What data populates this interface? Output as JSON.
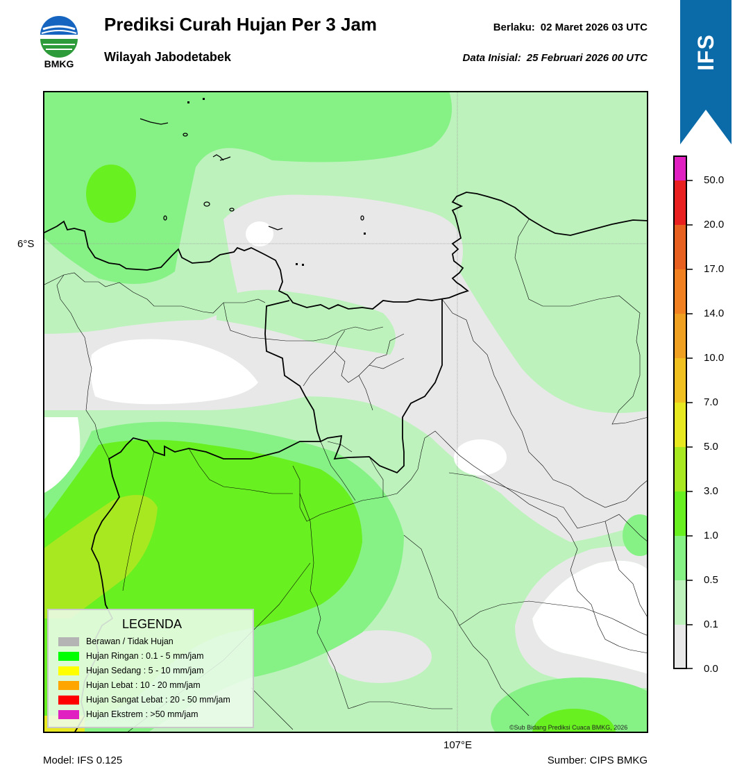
{
  "header": {
    "logo_text": "BMKG",
    "title": "Prediksi Curah Hujan Per 3 Jam",
    "subtitle": "Wilayah Jabodetabek",
    "valid_label": "Berlaku:",
    "valid_value": "02 Maret 2026 03 UTC",
    "init_label": "Data Inisial:",
    "init_value": "25 Februari 2026 00 UTC",
    "ribbon_text": "IFS"
  },
  "map": {
    "lat_label": "6°S",
    "lon_label": "107°E",
    "credit": "©Sub Bidang Prediksi Cuaca BMKG, 2026"
  },
  "footer": {
    "model": "Model: IFS 0.125",
    "source": "Sumber: CIPS BMKG"
  },
  "colorbar": {
    "ticks": [
      "0.0",
      "0.1",
      "0.5",
      "1.0",
      "3.0",
      "5.0",
      "7.0",
      "10.0",
      "14.0",
      "17.0",
      "20.0",
      "50.0"
    ],
    "colors": [
      "#e8e8e8",
      "#bdf2bd",
      "#86f286",
      "#68f020",
      "#a8e820",
      "#e8e820",
      "#f0c020",
      "#f0a020",
      "#f08020",
      "#e86020",
      "#e82020",
      "#e020c0"
    ]
  },
  "legend": {
    "title": "LEGENDA",
    "items": [
      {
        "label": "Berawan / Tidak Hujan",
        "color": "#b4b4b4"
      },
      {
        "label": "Hujan Ringan : 0.1 - 5 mm/jam",
        "color": "#00ff00"
      },
      {
        "label": "Hujan Sedang : 5 - 10 mm/jam",
        "color": "#ffff00"
      },
      {
        "label": "Hujan Lebat : 10 - 20 mm/jam",
        "color": "#ffa500"
      },
      {
        "label": "Hujan Sangat Lebat : 20 - 50 mm/jam",
        "color": "#ff0000"
      },
      {
        "label": "Hujan Ekstrem : >50 mm/jam",
        "color": "#e020c0"
      }
    ]
  }
}
